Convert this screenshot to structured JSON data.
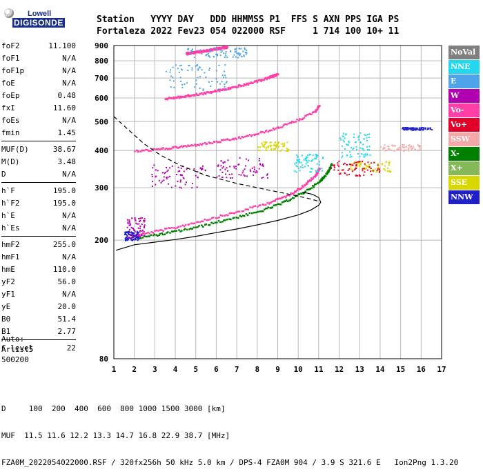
{
  "logo": {
    "line1": "Lowell",
    "line2": "DIGISONDE"
  },
  "header": {
    "line1": "Station   YYYY DAY   DDD HHMMSS P1  FFS S AXN PPS IGA PS",
    "line2": "Fortaleza 2022 Fev23 054 022000 RSF     1 714 100 10+ 11"
  },
  "params": [
    [
      {
        "k": "foF2",
        "v": "11.100"
      },
      {
        "k": "foF1",
        "v": "N/A"
      },
      {
        "k": "foF1p",
        "v": "N/A"
      },
      {
        "k": "foE",
        "v": "N/A"
      },
      {
        "k": "foEp",
        "v": "0.48"
      },
      {
        "k": "fxI",
        "v": "11.60"
      },
      {
        "k": "foEs",
        "v": "N/A"
      },
      {
        "k": "fmin",
        "v": "1.45"
      }
    ],
    [
      {
        "k": "MUF(D)",
        "v": "38.67"
      },
      {
        "k": "M(D)",
        "v": "3.48"
      },
      {
        "k": "D",
        "v": "N/A"
      }
    ],
    [
      {
        "k": "h`F",
        "v": "195.0"
      },
      {
        "k": "h`F2",
        "v": "195.0"
      },
      {
        "k": "h`E",
        "v": "N/A"
      },
      {
        "k": "h`Es",
        "v": "N/A"
      }
    ],
    [
      {
        "k": "hmF2",
        "v": "255.0"
      },
      {
        "k": "hmF1",
        "v": "N/A"
      },
      {
        "k": "hmE",
        "v": "110.0"
      },
      {
        "k": "yF2",
        "v": "56.0"
      },
      {
        "k": "yF1",
        "v": "N/A"
      },
      {
        "k": "yE",
        "v": "20.0"
      },
      {
        "k": "B0",
        "v": "51.4"
      },
      {
        "k": "B1",
        "v": "2.77"
      }
    ],
    [
      {
        "k": "C-level",
        "v": "22"
      }
    ]
  ],
  "auto": {
    "l1": "Auto:",
    "l2": "Artist5",
    "l3": "500200"
  },
  "legend": [
    {
      "label": "NoVal",
      "color": "#808080"
    },
    {
      "label": "NNE",
      "color": "#22d8f0"
    },
    {
      "label": "E",
      "color": "#4fa3e8"
    },
    {
      "label": "W",
      "color": "#b000b0"
    },
    {
      "label": "Vo-",
      "color": "#ff3fa8"
    },
    {
      "label": "Vo+",
      "color": "#e0002a"
    },
    {
      "label": "SSW",
      "color": "#f4a9a9"
    },
    {
      "label": "X-",
      "color": "#008000"
    },
    {
      "label": "X+",
      "color": "#86b85a"
    },
    {
      "label": "SSE",
      "color": "#d8d800"
    },
    {
      "label": "NNW",
      "color": "#2020c8"
    }
  ],
  "bottom": {
    "l1": "D     100  200  400  600  800 1000 1500 3000 [km]",
    "l2": "MUF  11.5 11.6 12.2 13.3 14.7 16.8 22.9 38.7 [MHz]",
    "l3": "FZA0M_2022054022000.RSF / 320fx256h 50 kHz 5.0 km / DPS-4 FZA0M 904 / 3.9 S 321.6 E   Ion2Png 1.3.20"
  },
  "chart_data": {
    "type": "scatter",
    "title": "",
    "xlabel": "",
    "ylabel": "",
    "xlim": [
      1,
      17
    ],
    "ylim": [
      80,
      900
    ],
    "xticks": [
      1,
      2,
      3,
      4,
      5,
      6,
      7,
      8,
      9,
      10,
      11,
      12,
      13,
      14,
      15,
      16,
      17
    ],
    "yticks": [
      80,
      200,
      300,
      400,
      500,
      600,
      700,
      800,
      900
    ],
    "y_scale": "log",
    "grid": true,
    "legend_position": "right",
    "series": [
      {
        "name": "Vo-",
        "color": "#ff3fa8",
        "kind": "trace",
        "x": [
          1.6,
          2.5,
          4,
          5.5,
          7,
          8.5,
          9.5,
          10.2,
          10.8,
          11.0
        ],
        "y": [
          205,
          212,
          222,
          236,
          250,
          268,
          285,
          305,
          330,
          350
        ]
      },
      {
        "name": "X-",
        "color": "#008000",
        "kind": "trace",
        "x": [
          2.2,
          3.5,
          5,
          6.5,
          8,
          9.2,
          10.2,
          11.0,
          11.4,
          11.6
        ],
        "y": [
          205,
          212,
          222,
          236,
          250,
          268,
          290,
          315,
          340,
          362
        ]
      },
      {
        "name": "Vo-",
        "color": "#ff3fa8",
        "kind": "trace",
        "x": [
          2,
          3,
          4,
          5,
          6,
          7,
          8,
          9,
          10,
          10.8,
          11.0
        ],
        "y": [
          400,
          405,
          412,
          420,
          430,
          442,
          458,
          480,
          510,
          545,
          570
        ]
      },
      {
        "name": "Vo-",
        "color": "#ff3fa8",
        "kind": "trace",
        "x": [
          3.5,
          4.5,
          5.5,
          6.5,
          7.5,
          8.5,
          9.0
        ],
        "y": [
          600,
          612,
          628,
          648,
          672,
          705,
          725
        ]
      },
      {
        "name": "Vo-",
        "color": "#ff3fa8",
        "kind": "trace",
        "x": [
          4.5,
          5.5,
          6.5
        ],
        "y": [
          850,
          870,
          895
        ]
      },
      {
        "name": "W",
        "color": "#b000b0",
        "kind": "cluster",
        "x": [
          1.6,
          2.5
        ],
        "y": [
          205,
          240
        ]
      },
      {
        "name": "W",
        "color": "#b000b0",
        "kind": "cluster",
        "x": [
          2.8,
          5.5
        ],
        "y": [
          300,
          360
        ]
      },
      {
        "name": "W",
        "color": "#b000b0",
        "kind": "cluster",
        "x": [
          6,
          8.5
        ],
        "y": [
          320,
          380
        ]
      },
      {
        "name": "NNE",
        "color": "#22d8f0",
        "kind": "cluster",
        "x": [
          9.8,
          11.2
        ],
        "y": [
          340,
          390
        ]
      },
      {
        "name": "NNE",
        "color": "#22d8f0",
        "kind": "cluster",
        "x": [
          12,
          13.5
        ],
        "y": [
          380,
          460
        ]
      },
      {
        "name": "E",
        "color": "#4fa3e8",
        "kind": "cluster",
        "x": [
          3.5,
          6.5
        ],
        "y": [
          640,
          780
        ]
      },
      {
        "name": "E",
        "color": "#4fa3e8",
        "kind": "cluster",
        "x": [
          4.5,
          7.5
        ],
        "y": [
          820,
          890
        ]
      },
      {
        "name": "SSE",
        "color": "#d8d800",
        "kind": "cluster",
        "x": [
          12.5,
          14.5
        ],
        "y": [
          340,
          370
        ]
      },
      {
        "name": "SSE",
        "color": "#d8d800",
        "kind": "cluster",
        "x": [
          8,
          9.5
        ],
        "y": [
          400,
          430
        ]
      },
      {
        "name": "Vo+",
        "color": "#e0002a",
        "kind": "cluster",
        "x": [
          11.5,
          14
        ],
        "y": [
          330,
          370
        ]
      },
      {
        "name": "NNW",
        "color": "#2020c8",
        "kind": "cluster",
        "x": [
          1.5,
          2.2
        ],
        "y": [
          200,
          215
        ]
      },
      {
        "name": "NNW",
        "color": "#2020c8",
        "kind": "cluster",
        "x": [
          15,
          16.5
        ],
        "y": [
          470,
          480
        ]
      },
      {
        "name": "SSW",
        "color": "#f4a9a9",
        "kind": "cluster",
        "x": [
          14,
          16
        ],
        "y": [
          400,
          420
        ]
      }
    ],
    "profile_solid": {
      "x": [
        1.1,
        2,
        3,
        4,
        5,
        6,
        7,
        8,
        9,
        10,
        10.6,
        11.0,
        11.1,
        11.0,
        10.7,
        10.2
      ],
      "y": [
        185,
        193,
        197,
        201,
        206,
        212,
        218,
        225,
        233,
        243,
        252,
        262,
        268,
        278,
        285,
        290
      ]
    },
    "profile_dashed": {
      "x": [
        1.0,
        1.7,
        2.5,
        3.3,
        4.3,
        5.5,
        7,
        8.5,
        9.8,
        10.6,
        11.0
      ],
      "y": [
        520,
        470,
        420,
        385,
        355,
        330,
        310,
        295,
        283,
        275,
        270
      ]
    }
  }
}
